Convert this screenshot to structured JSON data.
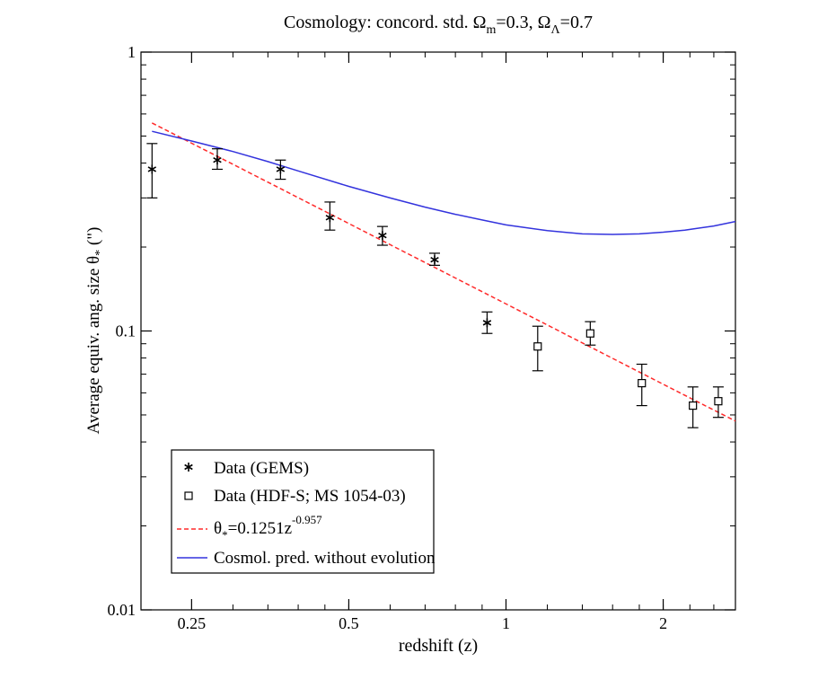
{
  "chart_data": {
    "type": "scatter",
    "title": "Cosmology: concord. std. Ω_m=0.3, Ω_Λ=0.7",
    "title_parts": {
      "prefix": "Cosmology: concord. std. Ω",
      "sub1": "m",
      "mid": "=0.3, Ω",
      "sub2": "Λ",
      "suffix": "=0.7"
    },
    "xlabel": "redshift (z)",
    "ylabel_parts": {
      "prefix": "Average equiv. ang. size θ",
      "sub": "*",
      "suffix": " (\")"
    },
    "xscale": "log",
    "yscale": "log",
    "xlim": [
      0.2,
      2.75
    ],
    "ylim": [
      0.01,
      1
    ],
    "x_ticks": [
      {
        "value": 0.25,
        "label": "0.25"
      },
      {
        "value": 0.5,
        "label": "0.5"
      },
      {
        "value": 1,
        "label": "1"
      },
      {
        "value": 2,
        "label": "2"
      }
    ],
    "y_ticks": [
      {
        "value": 0.01,
        "label": "0.01"
      },
      {
        "value": 0.1,
        "label": "0.1"
      },
      {
        "value": 1,
        "label": "1"
      }
    ],
    "grid": false,
    "legend_position": "bottom-left",
    "series": [
      {
        "name": "Data (GEMS)",
        "kind": "points",
        "marker": "asterisk",
        "color": "#000000",
        "points": [
          {
            "x": 0.21,
            "y": 0.38,
            "ylo": 0.3,
            "yhi": 0.47
          },
          {
            "x": 0.28,
            "y": 0.41,
            "ylo": 0.38,
            "yhi": 0.45
          },
          {
            "x": 0.37,
            "y": 0.38,
            "ylo": 0.35,
            "yhi": 0.41
          },
          {
            "x": 0.46,
            "y": 0.255,
            "ylo": 0.23,
            "yhi": 0.29
          },
          {
            "x": 0.58,
            "y": 0.22,
            "ylo": 0.203,
            "yhi": 0.237
          },
          {
            "x": 0.73,
            "y": 0.18,
            "ylo": 0.172,
            "yhi": 0.19
          },
          {
            "x": 0.92,
            "y": 0.107,
            "ylo": 0.098,
            "yhi": 0.117
          }
        ]
      },
      {
        "name": "Data (HDF-S; MS 1054-03)",
        "kind": "points",
        "marker": "square",
        "color": "#000000",
        "points": [
          {
            "x": 1.15,
            "y": 0.088,
            "ylo": 0.072,
            "yhi": 0.104
          },
          {
            "x": 1.45,
            "y": 0.098,
            "ylo": 0.089,
            "yhi": 0.108
          },
          {
            "x": 1.82,
            "y": 0.065,
            "ylo": 0.054,
            "yhi": 0.076
          },
          {
            "x": 2.28,
            "y": 0.054,
            "ylo": 0.045,
            "yhi": 0.063
          },
          {
            "x": 2.55,
            "y": 0.056,
            "ylo": 0.049,
            "yhi": 0.063
          }
        ]
      },
      {
        "name_parts": {
          "prefix": "θ",
          "sub": "*",
          "mid": "=0.1251z",
          "sup": "-0.957"
        },
        "kind": "fit",
        "style": "dashed",
        "color": "#ff2a2a",
        "coefficient": 0.1251,
        "exponent": -0.957,
        "x_range": [
          0.21,
          2.75
        ]
      },
      {
        "name": "Cosmol. pred. without evolution",
        "kind": "line",
        "style": "solid",
        "color": "#3333dd",
        "x": [
          0.21,
          0.25,
          0.3,
          0.35,
          0.4,
          0.5,
          0.6,
          0.7,
          0.8,
          0.9,
          1.0,
          1.2,
          1.4,
          1.6,
          1.8,
          2.0,
          2.2,
          2.5,
          2.75
        ],
        "y": [
          0.52,
          0.48,
          0.44,
          0.405,
          0.375,
          0.33,
          0.3,
          0.278,
          0.262,
          0.25,
          0.24,
          0.229,
          0.223,
          0.222,
          0.223,
          0.226,
          0.23,
          0.238,
          0.247
        ]
      }
    ]
  }
}
